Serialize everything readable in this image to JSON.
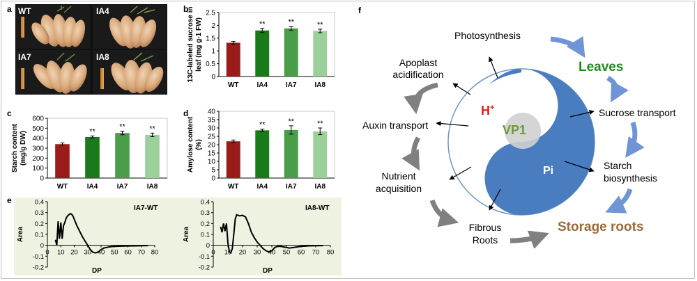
{
  "panels": {
    "a": {
      "label": "a",
      "photos": [
        {
          "tag": "WT"
        },
        {
          "tag": "IA4"
        },
        {
          "tag": "IA7"
        },
        {
          "tag": "IA8"
        }
      ]
    },
    "f": {
      "label": "f",
      "center": "VP1",
      "h_plus": "H",
      "h_plus_sup": "+",
      "pi": "Pi",
      "nodes": {
        "photosynthesis": "Photosynthesis",
        "leaves": "Leaves",
        "apoplast_1": "Apoplast",
        "apoplast_2": "acidification",
        "auxin": "Auxin  transport",
        "nutrient_1": "Nutrient",
        "nutrient_2": "acquisition",
        "fibrous_1": "Fibrous",
        "fibrous_2": "Roots",
        "sucrose": "Sucrose transport",
        "starch_1": "Starch",
        "starch_2": "biosynthesis",
        "storage": "Storage roots"
      },
      "colors": {
        "blue": "#4a7cc0",
        "green": "#1f8a1f",
        "brown": "#9a6b3b",
        "red": "#e02020",
        "arrow_gray": "#808080",
        "arrow_blue": "#6f95d6"
      }
    }
  },
  "chart_data": [
    {
      "id": "b",
      "panel_label": "b",
      "type": "bar",
      "categories": [
        "WT",
        "IA4",
        "IA7",
        "IA8"
      ],
      "values": [
        1.32,
        1.8,
        1.88,
        1.78
      ],
      "errors": [
        0.05,
        0.08,
        0.07,
        0.07
      ],
      "significance": [
        "",
        "**",
        "**",
        "**"
      ],
      "colors": [
        "#9b1b1b",
        "#1a7a1a",
        "#4a9e4a",
        "#9bd09b"
      ],
      "ylabel_1": "13C-labeled sucrose in",
      "ylabel_2": "leaf (mg g-1 FW)",
      "ylim": [
        0,
        2.5
      ],
      "yticks": [
        "0",
        "0.5",
        "1",
        "1.5",
        "2",
        "2.5"
      ]
    },
    {
      "id": "c",
      "panel_label": "c",
      "type": "bar",
      "categories": [
        "WT",
        "IA4",
        "IA7",
        "IA8"
      ],
      "values": [
        340,
        412,
        452,
        433
      ],
      "errors": [
        12,
        10,
        18,
        18
      ],
      "significance": [
        "",
        "**",
        "**",
        "**"
      ],
      "colors": [
        "#9b1b1b",
        "#1a7a1a",
        "#4a9e4a",
        "#9bd09b"
      ],
      "ylabel_1": "Starch content",
      "ylabel_2": "(mg/g DW)",
      "ylim": [
        0,
        600
      ],
      "yticks": [
        "0",
        "100",
        "200",
        "300",
        "400",
        "500",
        "600"
      ]
    },
    {
      "id": "d",
      "panel_label": "d",
      "type": "bar",
      "categories": [
        "WT",
        "IA4",
        "IA7",
        "IA8"
      ],
      "values": [
        22,
        28.6,
        28.8,
        28
      ],
      "errors": [
        0.8,
        0.7,
        2.5,
        2
      ],
      "significance": [
        "",
        "**",
        "**",
        "**"
      ],
      "colors": [
        "#9b1b1b",
        "#1a7a1a",
        "#4a9e4a",
        "#9bd09b"
      ],
      "ylabel_1": "Amylose content",
      "ylabel_2": "(%)",
      "ylim": [
        0,
        40
      ],
      "yticks": [
        "0",
        "5",
        "10",
        "15",
        "20",
        "25",
        "30",
        "35",
        "40"
      ]
    },
    {
      "id": "e1",
      "panel_label": "e",
      "type": "line",
      "title": "IA7-WT",
      "xlabel": "DP",
      "ylabel": "Area",
      "xlim": [
        0,
        80
      ],
      "ylim": [
        -0.2,
        0.4
      ],
      "xticks": [
        "0",
        "10",
        "20",
        "30",
        "40",
        "50",
        "60",
        "70",
        "80"
      ],
      "yticks": [
        "-0.2",
        "-0.1",
        "0",
        "0.1",
        "0.2",
        "0.3",
        "0.4"
      ],
      "x": [
        6,
        7,
        8,
        9,
        10,
        11,
        12,
        13,
        14,
        15,
        16,
        17,
        18,
        19,
        20,
        21,
        22,
        24,
        26,
        28,
        30,
        32,
        34,
        36,
        38,
        40,
        42,
        44,
        46,
        48,
        50,
        55,
        60,
        65,
        70,
        75
      ],
      "y": [
        0.05,
        0.0,
        0.22,
        0.06,
        0.21,
        0.06,
        0.18,
        0.21,
        0.25,
        0.27,
        0.28,
        0.29,
        0.285,
        0.27,
        0.24,
        0.21,
        0.18,
        0.13,
        0.08,
        0.04,
        0.0,
        -0.04,
        -0.065,
        -0.07,
        -0.06,
        -0.04,
        -0.025,
        -0.02,
        -0.015,
        -0.012,
        -0.01,
        -0.008,
        -0.006,
        -0.005,
        -0.004,
        -0.003
      ]
    },
    {
      "id": "e2",
      "type": "line",
      "title": "IA8-WT",
      "xlabel": "DP",
      "ylabel": "Area",
      "xlim": [
        0,
        80
      ],
      "ylim": [
        -0.2,
        0.4
      ],
      "xticks": [
        "0",
        "10",
        "20",
        "30",
        "40",
        "50",
        "60",
        "70",
        "80"
      ],
      "yticks": [
        "-0.2",
        "-0.1",
        "0",
        "0.1",
        "0.2",
        "0.3",
        "0.4"
      ],
      "x": [
        5,
        6,
        7,
        8,
        9,
        10,
        11,
        12,
        13,
        14,
        15,
        16,
        17,
        18,
        20,
        22,
        24,
        26,
        28,
        30,
        32,
        34,
        36,
        38,
        40,
        42,
        44,
        46,
        48,
        50,
        52,
        55,
        60,
        65,
        70,
        75
      ],
      "y": [
        0.17,
        0.12,
        0.2,
        0.13,
        0.2,
        0.02,
        -0.06,
        -0.07,
        -0.03,
        0.1,
        0.24,
        0.28,
        0.275,
        0.27,
        0.275,
        0.26,
        0.2,
        0.12,
        0.07,
        0.03,
        0.0,
        -0.03,
        -0.05,
        -0.06,
        -0.05,
        -0.02,
        -0.01,
        -0.01,
        -0.015,
        -0.02,
        -0.025,
        -0.02,
        -0.01,
        -0.005,
        -0.004,
        -0.003
      ]
    }
  ]
}
